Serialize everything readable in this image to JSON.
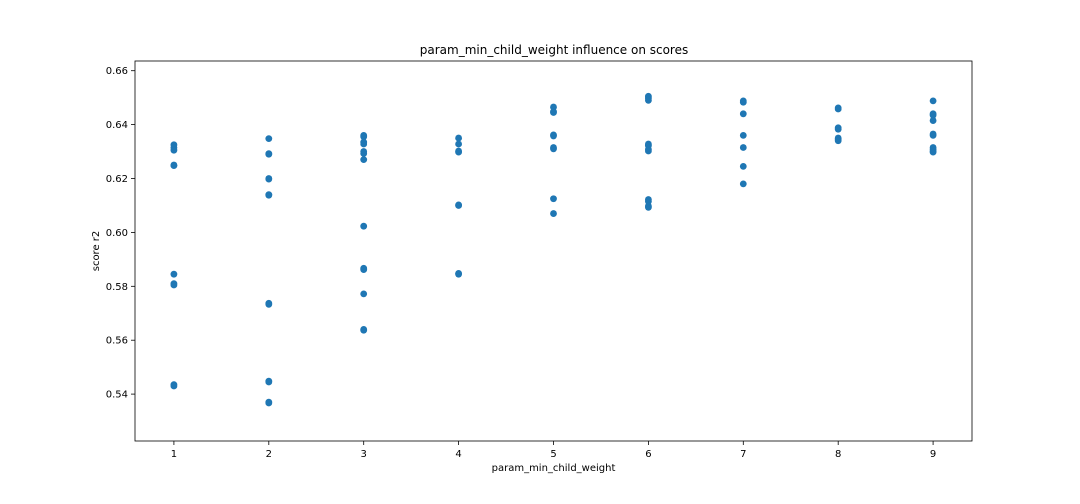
{
  "chart_data": {
    "type": "scatter",
    "title": "param_min_child_weight influence on scores",
    "xlabel": "param_min_child_weight",
    "ylabel": "score r2",
    "xlim": [
      0.59,
      9.41
    ],
    "ylim": [
      0.5226,
      0.6636
    ],
    "x_ticks": [
      1,
      2,
      3,
      4,
      5,
      6,
      7,
      8,
      9
    ],
    "y_ticks": [
      0.54,
      0.56,
      0.58,
      0.6,
      0.62,
      0.64,
      0.66
    ],
    "y_tick_labels": [
      "0.54",
      "0.56",
      "0.58",
      "0.60",
      "0.62",
      "0.64",
      "0.66"
    ],
    "grid": false,
    "marker_color": "#1f77b4",
    "series": [
      {
        "points": [
          {
            "x": 1,
            "y": 0.6325
          },
          {
            "x": 1,
            "y": 0.6315
          },
          {
            "x": 1,
            "y": 0.6305
          },
          {
            "x": 1,
            "y": 0.625
          },
          {
            "x": 1,
            "y": 0.6248
          },
          {
            "x": 1,
            "y": 0.5845
          },
          {
            "x": 1,
            "y": 0.581
          },
          {
            "x": 1,
            "y": 0.5805
          },
          {
            "x": 1,
            "y": 0.5435
          },
          {
            "x": 1,
            "y": 0.543
          },
          {
            "x": 2,
            "y": 0.6348
          },
          {
            "x": 2,
            "y": 0.6292
          },
          {
            "x": 2,
            "y": 0.629
          },
          {
            "x": 2,
            "y": 0.62
          },
          {
            "x": 2,
            "y": 0.6198
          },
          {
            "x": 2,
            "y": 0.614
          },
          {
            "x": 2,
            "y": 0.6138
          },
          {
            "x": 2,
            "y": 0.5737
          },
          {
            "x": 2,
            "y": 0.5733
          },
          {
            "x": 2,
            "y": 0.5448
          },
          {
            "x": 2,
            "y": 0.5445
          },
          {
            "x": 2,
            "y": 0.537
          },
          {
            "x": 2,
            "y": 0.5367
          },
          {
            "x": 3,
            "y": 0.636
          },
          {
            "x": 3,
            "y": 0.6355
          },
          {
            "x": 3,
            "y": 0.6335
          },
          {
            "x": 3,
            "y": 0.6328
          },
          {
            "x": 3,
            "y": 0.63
          },
          {
            "x": 3,
            "y": 0.6293
          },
          {
            "x": 3,
            "y": 0.627
          },
          {
            "x": 3,
            "y": 0.6023
          },
          {
            "x": 3,
            "y": 0.5867
          },
          {
            "x": 3,
            "y": 0.5862
          },
          {
            "x": 3,
            "y": 0.5772
          },
          {
            "x": 3,
            "y": 0.564
          },
          {
            "x": 3,
            "y": 0.5637
          },
          {
            "x": 4,
            "y": 0.635
          },
          {
            "x": 4,
            "y": 0.6328
          },
          {
            "x": 4,
            "y": 0.6302
          },
          {
            "x": 4,
            "y": 0.6298
          },
          {
            "x": 4,
            "y": 0.6102
          },
          {
            "x": 4,
            "y": 0.61
          },
          {
            "x": 4,
            "y": 0.5848
          },
          {
            "x": 4,
            "y": 0.5845
          },
          {
            "x": 5,
            "y": 0.6465
          },
          {
            "x": 5,
            "y": 0.6448
          },
          {
            "x": 5,
            "y": 0.6445
          },
          {
            "x": 5,
            "y": 0.6362
          },
          {
            "x": 5,
            "y": 0.6358
          },
          {
            "x": 5,
            "y": 0.6315
          },
          {
            "x": 5,
            "y": 0.631
          },
          {
            "x": 5,
            "y": 0.6125
          },
          {
            "x": 5,
            "y": 0.607
          },
          {
            "x": 6,
            "y": 0.6505
          },
          {
            "x": 6,
            "y": 0.6498
          },
          {
            "x": 6,
            "y": 0.649
          },
          {
            "x": 6,
            "y": 0.6328
          },
          {
            "x": 6,
            "y": 0.6322
          },
          {
            "x": 6,
            "y": 0.6308
          },
          {
            "x": 6,
            "y": 0.6302
          },
          {
            "x": 6,
            "y": 0.6122
          },
          {
            "x": 6,
            "y": 0.6115
          },
          {
            "x": 6,
            "y": 0.6098
          },
          {
            "x": 6,
            "y": 0.6093
          },
          {
            "x": 7,
            "y": 0.6488
          },
          {
            "x": 7,
            "y": 0.6483
          },
          {
            "x": 7,
            "y": 0.644
          },
          {
            "x": 7,
            "y": 0.636
          },
          {
            "x": 7,
            "y": 0.6315
          },
          {
            "x": 7,
            "y": 0.6245
          },
          {
            "x": 7,
            "y": 0.618
          },
          {
            "x": 8,
            "y": 0.6462
          },
          {
            "x": 8,
            "y": 0.6458
          },
          {
            "x": 8,
            "y": 0.6388
          },
          {
            "x": 8,
            "y": 0.6383
          },
          {
            "x": 8,
            "y": 0.635
          },
          {
            "x": 8,
            "y": 0.6345
          },
          {
            "x": 8,
            "y": 0.634
          },
          {
            "x": 9,
            "y": 0.6488
          },
          {
            "x": 9,
            "y": 0.644
          },
          {
            "x": 9,
            "y": 0.6435
          },
          {
            "x": 9,
            "y": 0.6415
          },
          {
            "x": 9,
            "y": 0.6365
          },
          {
            "x": 9,
            "y": 0.636
          },
          {
            "x": 9,
            "y": 0.6315
          },
          {
            "x": 9,
            "y": 0.6308
          },
          {
            "x": 9,
            "y": 0.6302
          },
          {
            "x": 9,
            "y": 0.6298
          }
        ]
      }
    ]
  }
}
